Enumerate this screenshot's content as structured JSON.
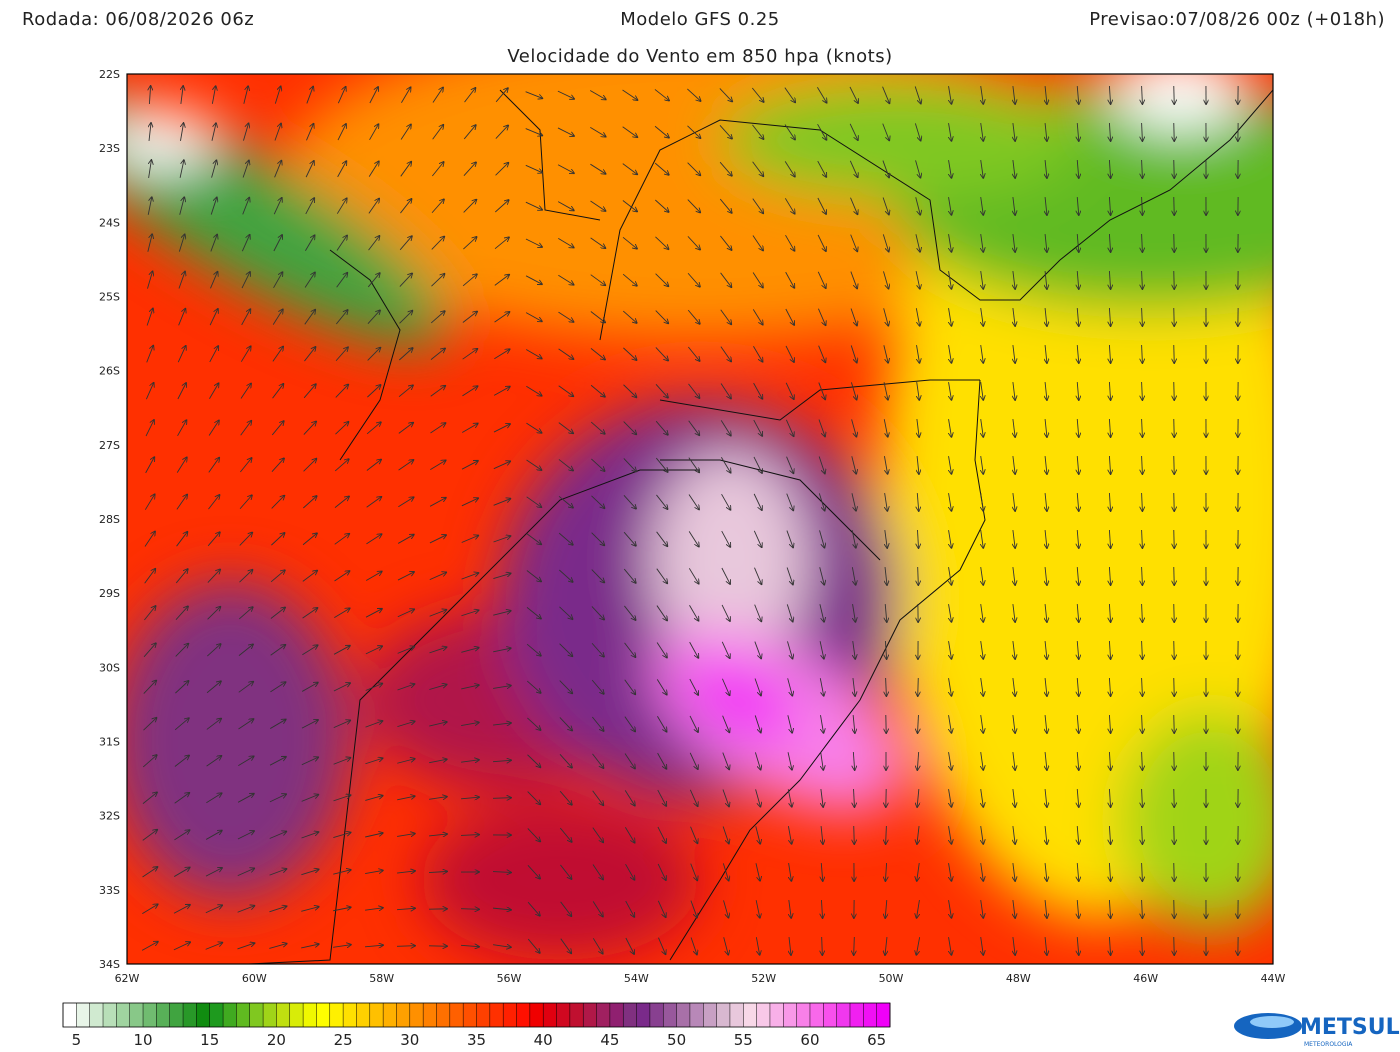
{
  "header": {
    "left": "Rodada: 06/08/2026 06z",
    "center": "Modelo GFS 0.25",
    "right": "Previsao:07/08/26 00z (+018h)",
    "subtitle": "Velocidade do Vento em 850 hpa (knots)"
  },
  "axes": {
    "lat_labels": [
      "22S",
      "23S",
      "24S",
      "25S",
      "26S",
      "27S",
      "28S",
      "29S",
      "30S",
      "31S",
      "32S",
      "33S",
      "34S"
    ],
    "lon_labels": [
      "62W",
      "60W",
      "58W",
      "56W",
      "54W",
      "52W",
      "50W",
      "48W",
      "46W",
      "44W"
    ]
  },
  "colorbar": {
    "labels": [
      "5",
      "10",
      "15",
      "20",
      "25",
      "30",
      "35",
      "40",
      "45",
      "50",
      "55",
      "60",
      "65"
    ],
    "colors": [
      "#ffffff",
      "#e8f5e8",
      "#d0ead0",
      "#b8dfb8",
      "#a0d4a0",
      "#88c888",
      "#70bc70",
      "#58b058",
      "#40a440",
      "#289828",
      "#108c10",
      "#1e9a1e",
      "#40aa20",
      "#60ba20",
      "#80c820",
      "#a0d418",
      "#c0e010",
      "#d8ec08",
      "#f0f800",
      "#ffff00",
      "#fff000",
      "#ffe000",
      "#ffd000",
      "#ffc000",
      "#ffb000",
      "#ffa000",
      "#ff9000",
      "#ff8000",
      "#ff7000",
      "#ff6000",
      "#ff5000",
      "#ff4000",
      "#ff3000",
      "#ff2000",
      "#ff1000",
      "#f00000",
      "#e00010",
      "#d00820",
      "#c01030",
      "#b01848",
      "#a02060",
      "#902070",
      "#803080",
      "#7a2a8a",
      "#884090",
      "#98589c",
      "#a870a8",
      "#b888b8",
      "#c8a0c4",
      "#d8b8d0",
      "#e8c8dc",
      "#f8d8e8",
      "#f8c8e8",
      "#f8b0e8",
      "#f898e8",
      "#f880e8",
      "#f868ea",
      "#f850ec",
      "#f038ee",
      "#f020f0",
      "#f010f4",
      "#f000f8"
    ]
  },
  "logo": {
    "name": "METSUL",
    "tagline": "METEOROLOGIA"
  }
}
